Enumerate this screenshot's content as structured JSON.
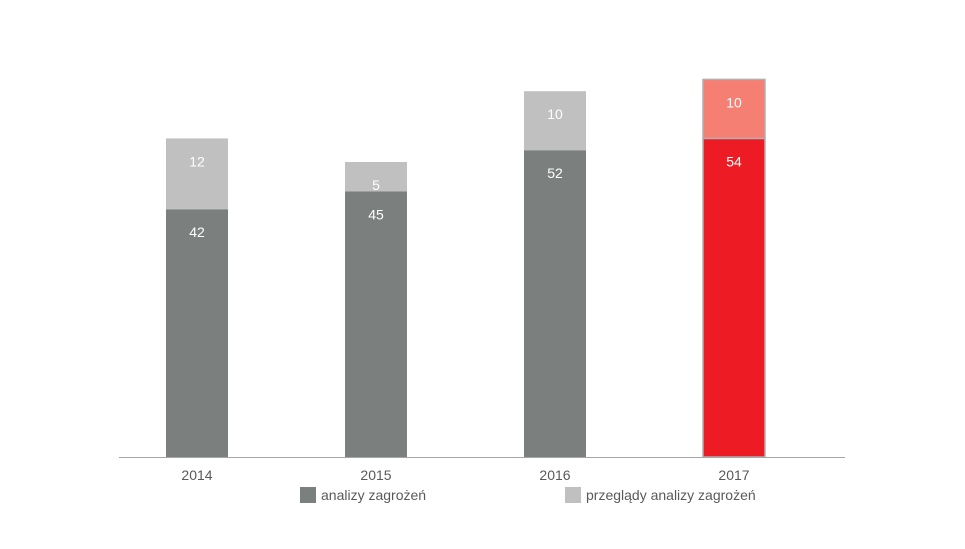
{
  "chart_data": {
    "type": "bar",
    "stacked": true,
    "categories": [
      "2014",
      "2015",
      "2016",
      "2017"
    ],
    "series": [
      {
        "name": "analizy zagrożeń",
        "values": [
          42,
          45,
          52,
          54
        ],
        "color": "#7b807e",
        "highlight_color": "#ed1c24"
      },
      {
        "name": "przeglądy analizy zagrożeń",
        "values": [
          12,
          5,
          10,
          10
        ],
        "color": "#c0c0c0",
        "highlight_color": "#f47f72"
      }
    ],
    "highlight_category": "2017",
    "title": "",
    "xlabel": "",
    "ylabel": "",
    "ylim": [
      0,
      64
    ],
    "grid": false,
    "legend_position": "bottom"
  }
}
